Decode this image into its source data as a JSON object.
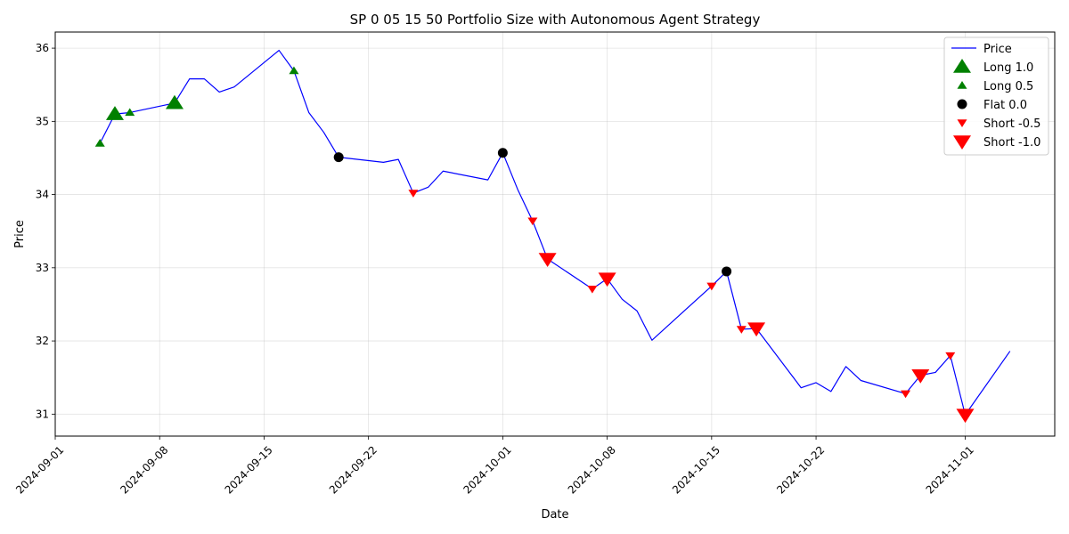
{
  "chart_data": {
    "type": "line",
    "title": "SP 0 05 15 50 Portfolio Size with Autonomous Agent Strategy",
    "xlabel": "Date",
    "ylabel": "Price",
    "xlim": [
      "2024-09-01",
      "2024-11-07"
    ],
    "ylim": [
      30.7,
      36.22
    ],
    "grid": true,
    "legend_position": "upper right",
    "x_ticks": [
      "2024-09-01",
      "2024-09-08",
      "2024-09-15",
      "2024-09-22",
      "2024-10-01",
      "2024-10-08",
      "2024-10-15",
      "2024-10-22",
      "2024-11-01"
    ],
    "y_ticks": [
      31,
      32,
      33,
      34,
      35,
      36
    ],
    "series": [
      {
        "name": "Price",
        "color": "#0000ff",
        "points": [
          [
            "2024-09-04",
            34.7
          ],
          [
            "2024-09-05",
            35.1
          ],
          [
            "2024-09-06",
            35.12
          ],
          [
            "2024-09-09",
            35.25
          ],
          [
            "2024-09-10",
            35.58
          ],
          [
            "2024-09-11",
            35.58
          ],
          [
            "2024-09-12",
            35.4
          ],
          [
            "2024-09-13",
            35.47
          ],
          [
            "2024-09-16",
            35.97
          ],
          [
            "2024-09-17",
            35.69
          ],
          [
            "2024-09-18",
            35.12
          ],
          [
            "2024-09-19",
            34.85
          ],
          [
            "2024-09-20",
            34.51
          ],
          [
            "2024-09-23",
            34.44
          ],
          [
            "2024-09-24",
            34.48
          ],
          [
            "2024-09-25",
            34.02
          ],
          [
            "2024-09-26",
            34.1
          ],
          [
            "2024-09-27",
            34.32
          ],
          [
            "2024-09-30",
            34.2
          ],
          [
            "2024-10-01",
            34.57
          ],
          [
            "2024-10-02",
            34.07
          ],
          [
            "2024-10-03",
            33.64
          ],
          [
            "2024-10-04",
            33.12
          ],
          [
            "2024-10-07",
            32.71
          ],
          [
            "2024-10-08",
            32.85
          ],
          [
            "2024-10-09",
            32.57
          ],
          [
            "2024-10-10",
            32.41
          ],
          [
            "2024-10-11",
            32.01
          ],
          [
            "2024-10-15",
            32.75
          ],
          [
            "2024-10-16",
            32.95
          ],
          [
            "2024-10-17",
            32.16
          ],
          [
            "2024-10-18",
            32.17
          ],
          [
            "2024-10-21",
            31.36
          ],
          [
            "2024-10-22",
            31.43
          ],
          [
            "2024-10-23",
            31.31
          ],
          [
            "2024-10-24",
            31.65
          ],
          [
            "2024-10-25",
            31.46
          ],
          [
            "2024-10-28",
            31.28
          ],
          [
            "2024-10-29",
            31.53
          ],
          [
            "2024-10-30",
            31.57
          ],
          [
            "2024-10-31",
            31.8
          ],
          [
            "2024-11-01",
            30.99
          ],
          [
            "2024-11-04",
            31.86
          ]
        ]
      }
    ],
    "markers": [
      {
        "name": "Long 1.0",
        "shape": "triangle-up",
        "size": "large",
        "color": "#008000",
        "points": [
          [
            "2024-09-05",
            35.1
          ],
          [
            "2024-09-09",
            35.25
          ]
        ]
      },
      {
        "name": "Long 0.5",
        "shape": "triangle-up",
        "size": "small",
        "color": "#008000",
        "points": [
          [
            "2024-09-04",
            34.7
          ],
          [
            "2024-09-06",
            35.12
          ],
          [
            "2024-09-17",
            35.69
          ]
        ]
      },
      {
        "name": "Flat 0.0",
        "shape": "circle",
        "size": "small",
        "color": "#000000",
        "points": [
          [
            "2024-09-20",
            34.51
          ],
          [
            "2024-10-01",
            34.57
          ],
          [
            "2024-10-16",
            32.95
          ]
        ]
      },
      {
        "name": "Short -0.5",
        "shape": "triangle-down",
        "size": "small",
        "color": "#ff0000",
        "points": [
          [
            "2024-09-25",
            34.02
          ],
          [
            "2024-10-03",
            33.64
          ],
          [
            "2024-10-07",
            32.71
          ],
          [
            "2024-10-15",
            32.75
          ],
          [
            "2024-10-17",
            32.16
          ],
          [
            "2024-10-28",
            31.28
          ],
          [
            "2024-10-31",
            31.8
          ]
        ]
      },
      {
        "name": "Short -1.0",
        "shape": "triangle-down",
        "size": "large",
        "color": "#ff0000",
        "points": [
          [
            "2024-10-04",
            33.12
          ],
          [
            "2024-10-08",
            32.85
          ],
          [
            "2024-10-18",
            32.17
          ],
          [
            "2024-10-29",
            31.53
          ],
          [
            "2024-11-01",
            30.99
          ]
        ]
      }
    ]
  }
}
